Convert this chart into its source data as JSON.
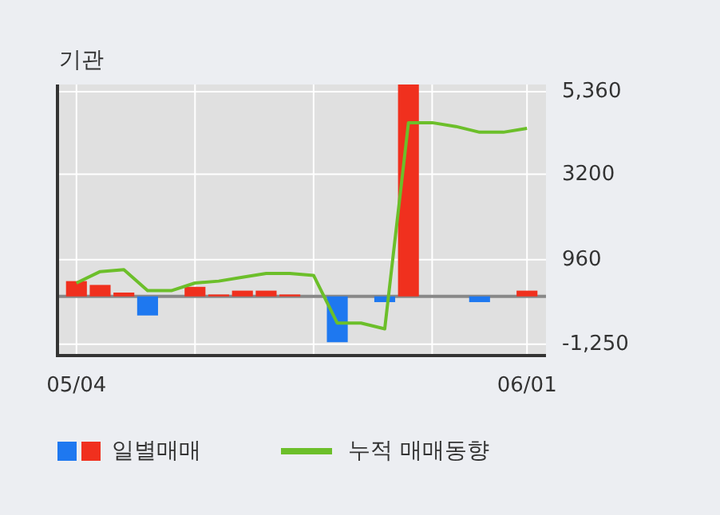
{
  "chart_data": {
    "type": "bar",
    "title": "기관",
    "categories": [
      "05/04",
      null,
      null,
      null,
      null,
      null,
      null,
      null,
      null,
      null,
      null,
      null,
      null,
      null,
      null,
      null,
      null,
      null,
      null,
      "06/01"
    ],
    "series": [
      {
        "name": "일별매매",
        "values": [
          400,
          300,
          100,
          -500,
          0,
          250,
          50,
          150,
          150,
          50,
          0,
          -1200,
          0,
          -150,
          5550,
          0,
          0,
          -150,
          0,
          150
        ],
        "colors": [
          "#f0301e",
          "#f0301e",
          "#f0301e",
          "#1e78f0",
          "#f0301e",
          "#f0301e",
          "#f0301e",
          "#f0301e",
          "#f0301e",
          "#f0301e",
          "#f0301e",
          "#1e78f0",
          "#f0301e",
          "#1e78f0",
          "#f0301e",
          "#f0301e",
          "#f0301e",
          "#1e78f0",
          "#f0301e",
          "#f0301e"
        ]
      },
      {
        "name": "누적 매매동향",
        "type": "line",
        "color": "#6cbf2a",
        "values": [
          350,
          650,
          700,
          150,
          150,
          350,
          400,
          500,
          600,
          600,
          550,
          -700,
          -700,
          -850,
          4550,
          4550,
          4450,
          4300,
          4300,
          4400
        ]
      }
    ],
    "ylim": [
      -1550,
      5550
    ],
    "yticks": [
      {
        "value": 5360,
        "label": "5,360"
      },
      3200,
      960,
      {
        "value": -1250,
        "label": "-1,250"
      }
    ],
    "ref_lines": [
      {
        "axis": "y",
        "value": 0,
        "color": "#888888"
      }
    ],
    "grid": true,
    "legend": "bottom"
  }
}
